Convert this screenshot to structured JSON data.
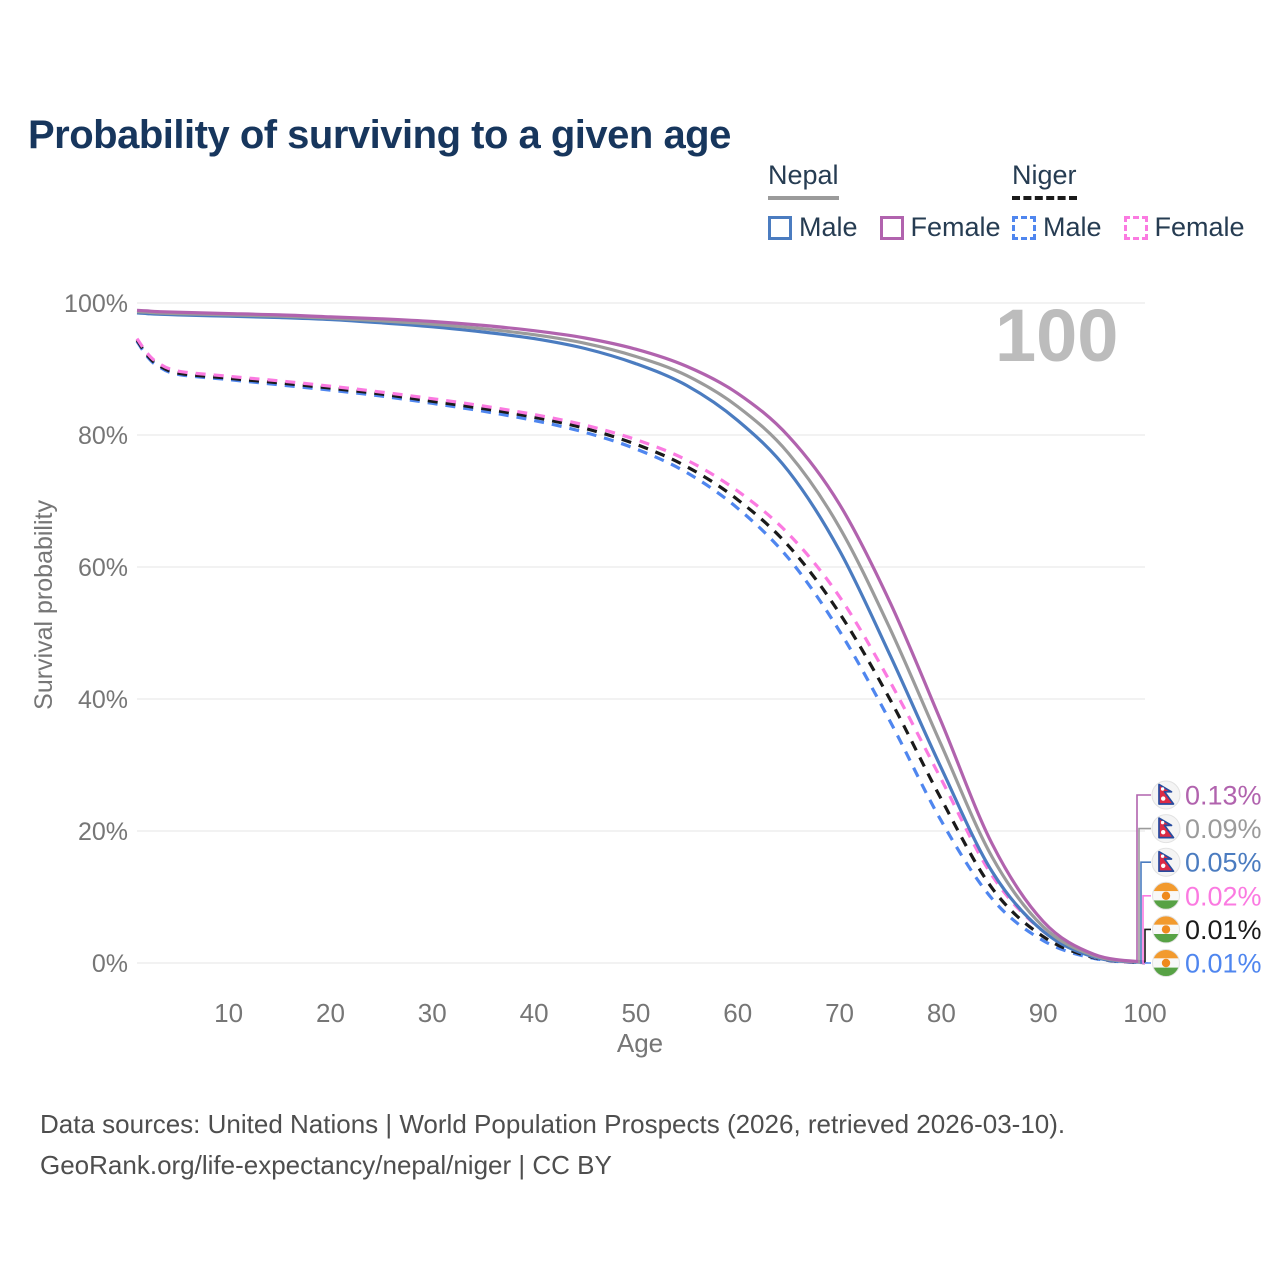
{
  "title": "Probability of surviving to a given age",
  "watermark": "100",
  "legend": {
    "nepal": {
      "label": "Nepal",
      "male_label": "Male",
      "female_label": "Female",
      "underline_style": "solid",
      "underline_color": "#9b9b9b",
      "male_color": "#4b7cc0",
      "female_color": "#b163ae"
    },
    "niger": {
      "label": "Niger",
      "male_label": "Male",
      "female_label": "Female",
      "underline_style": "dashed",
      "underline_color": "#1a1a1a",
      "male_color": "#4f86ef",
      "female_color": "#fb7ae1"
    }
  },
  "axes": {
    "xlabel": "Age",
    "ylabel": "Survival probability",
    "x_ticks": [
      10,
      20,
      30,
      40,
      50,
      60,
      70,
      80,
      90,
      100
    ],
    "y_tick_labels": [
      "0%",
      "20%",
      "40%",
      "60%",
      "80%",
      "100%"
    ],
    "y_tick_values": [
      0,
      20,
      40,
      60,
      80,
      100
    ]
  },
  "chart_data": {
    "type": "line",
    "title": "Probability of surviving to a given age",
    "xlabel": "Age",
    "ylabel": "Survival probability",
    "xlim": [
      1,
      100
    ],
    "ylim": [
      0,
      100
    ],
    "grid": "horizontal",
    "legend_position": "top-right",
    "x": [
      1,
      2,
      3,
      5,
      10,
      15,
      20,
      25,
      30,
      35,
      40,
      45,
      50,
      55,
      60,
      65,
      70,
      75,
      80,
      85,
      90,
      95,
      100
    ],
    "series": [
      {
        "id": "nepal-female",
        "name": "Nepal Female",
        "country": "Nepal",
        "sex": "Female",
        "line": "solid",
        "color": "#b163ae",
        "end_label": "0.13%",
        "values": [
          98.9,
          98.8,
          98.7,
          98.6,
          98.4,
          98.2,
          97.9,
          97.6,
          97.2,
          96.6,
          95.8,
          94.7,
          93.0,
          90.4,
          86.3,
          79.8,
          69.5,
          54.5,
          36.5,
          18.0,
          6.3,
          1.3,
          0.13
        ]
      },
      {
        "id": "nepal-both",
        "name": "Nepal (both sexes)",
        "country": "Nepal",
        "sex": "Both",
        "line": "solid",
        "color": "#9b9b9b",
        "end_label": "0.09%",
        "values": [
          98.7,
          98.6,
          98.5,
          98.4,
          98.2,
          98.0,
          97.7,
          97.3,
          96.8,
          96.1,
          95.2,
          93.9,
          91.9,
          89.0,
          84.3,
          77.2,
          66.0,
          50.5,
          33.0,
          16.0,
          5.5,
          1.1,
          0.09
        ]
      },
      {
        "id": "nepal-male",
        "name": "Nepal Male",
        "country": "Nepal",
        "sex": "Male",
        "line": "solid",
        "color": "#4b7cc0",
        "end_label": "0.05%",
        "values": [
          98.5,
          98.4,
          98.3,
          98.2,
          98.0,
          97.8,
          97.5,
          97.0,
          96.4,
          95.6,
          94.6,
          93.1,
          90.8,
          87.5,
          82.2,
          74.5,
          62.5,
          46.5,
          29.5,
          13.8,
          4.8,
          0.9,
          0.05
        ]
      },
      {
        "id": "niger-female",
        "name": "Niger Female",
        "country": "Niger",
        "sex": "Female",
        "line": "dashed",
        "color": "#fb7ae1",
        "end_label": "0.02%",
        "values": [
          94.6,
          92.4,
          91.0,
          89.7,
          88.9,
          88.2,
          87.4,
          86.5,
          85.5,
          84.4,
          83.1,
          81.5,
          79.3,
          76.2,
          71.5,
          65.0,
          55.5,
          42.5,
          27.8,
          13.2,
          4.8,
          0.9,
          0.02
        ]
      },
      {
        "id": "niger-both",
        "name": "Niger (both sexes)",
        "country": "Niger",
        "sex": "Both",
        "line": "dashed",
        "color": "#1a1a1a",
        "end_label": "0.01%",
        "values": [
          94.4,
          92.1,
          90.7,
          89.4,
          88.6,
          87.9,
          87.1,
          86.2,
          85.1,
          84.0,
          82.7,
          81.0,
          78.6,
          75.2,
          70.2,
          63.2,
          53.0,
          39.8,
          24.8,
          11.3,
          4.0,
          0.8,
          0.01
        ]
      },
      {
        "id": "niger-male",
        "name": "Niger Male",
        "country": "Niger",
        "sex": "Male",
        "line": "dashed",
        "color": "#4f86ef",
        "end_label": "0.01%",
        "values": [
          94.2,
          91.9,
          90.5,
          89.2,
          88.4,
          87.6,
          86.8,
          85.9,
          84.8,
          83.6,
          82.2,
          80.4,
          77.9,
          74.3,
          68.9,
          61.3,
          50.3,
          36.5,
          21.5,
          9.7,
          3.4,
          0.7,
          0.01
        ]
      }
    ]
  },
  "flag_colors": {
    "nepal": {
      "crimson": "#dc2a45",
      "blue": "#274b9f",
      "background": "#f4f4f4"
    },
    "niger": {
      "orange": "#f29a2e",
      "dot_orange": "#ef8a1e",
      "white": "#f8f8f8",
      "green": "#57a245",
      "background": "#f4f4f4"
    }
  },
  "footer": {
    "line1": "Data sources: United Nations | World Population Prospects (2026, retrieved 2026-03-10).",
    "line2": "GeoRank.org/life-expectancy/nepal/niger | CC BY"
  }
}
